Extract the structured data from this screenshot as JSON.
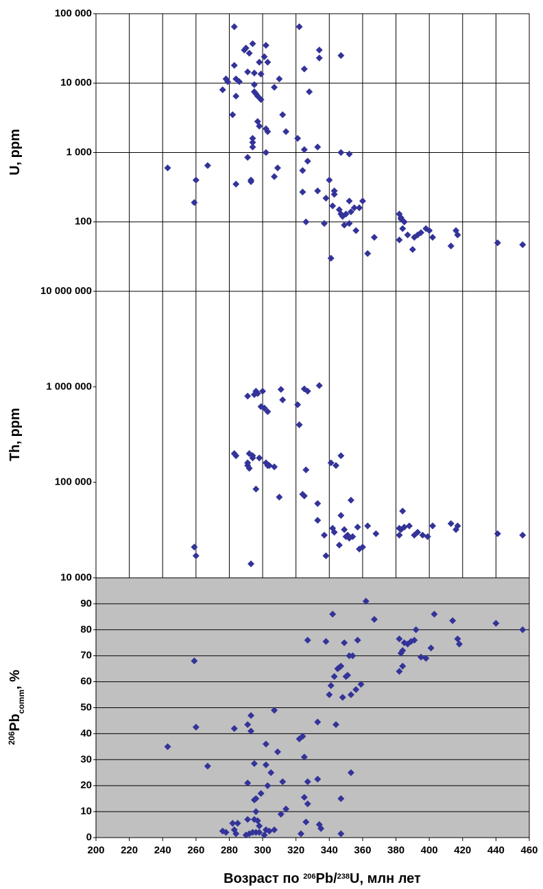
{
  "chart_data": [
    {
      "type": "scatter",
      "log": true,
      "grid": "both",
      "background": "#ffffff",
      "color": "#333399",
      "ylabel": "U, ppm",
      "xlim": [
        200,
        460
      ],
      "ylim": [
        10,
        100000
      ],
      "yticks": [
        100,
        {
          "value": 1000,
          "label": "1 000"
        },
        {
          "value": 10000,
          "label": "10 000"
        },
        {
          "value": 100000,
          "label": "100 000"
        }
      ],
      "x": [
        243,
        259,
        260,
        267,
        276,
        278,
        279,
        282,
        283,
        283,
        284,
        284,
        284,
        286,
        289,
        290,
        291,
        291,
        292,
        293,
        293,
        294,
        294,
        294,
        294,
        295,
        295,
        295,
        296,
        297,
        297,
        298,
        298,
        299,
        299,
        301,
        302,
        302,
        302,
        303,
        303,
        307,
        307,
        309,
        310,
        312,
        314,
        321,
        322,
        324,
        324,
        325,
        325,
        326,
        327,
        328,
        333,
        333,
        334,
        334,
        337,
        338,
        340,
        341,
        342,
        343,
        343,
        346,
        347,
        347,
        347,
        348,
        349,
        350,
        352,
        352,
        352,
        353,
        355,
        356,
        358,
        360,
        363,
        367,
        382,
        382,
        383,
        383,
        384,
        385,
        387,
        390,
        391,
        393,
        395,
        398,
        400,
        402,
        413,
        416,
        417,
        441,
        456
      ],
      "values": [
        600,
        190,
        400,
        650,
        8000,
        11500,
        10500,
        3500,
        65000,
        18000,
        11500,
        6500,
        350,
        10500,
        30000,
        32000,
        14500,
        850,
        27000,
        400,
        380,
        37000,
        1600,
        1400,
        1200,
        7500,
        9500,
        14000,
        7000,
        2800,
        6500,
        2400,
        20000,
        13500,
        5800,
        24000,
        2200,
        1000,
        35000,
        20000,
        2000,
        8700,
        450,
        600,
        11500,
        3500,
        2000,
        1600,
        65000,
        550,
        270,
        1100,
        16000,
        100,
        750,
        7500,
        1200,
        280,
        23000,
        30000,
        95,
        220,
        400,
        30,
        170,
        280,
        250,
        150,
        25000,
        1000,
        130,
        120,
        90,
        130,
        950,
        200,
        95,
        140,
        160,
        75,
        160,
        200,
        35,
        60,
        55,
        130,
        110,
        115,
        80,
        100,
        65,
        40,
        60,
        65,
        70,
        80,
        75,
        60,
        45,
        75,
        65,
        50,
        47
      ]
    },
    {
      "type": "scatter",
      "log": true,
      "grid": "x",
      "background": "#ffffff",
      "color": "#333399",
      "ylabel": "Th, ppm",
      "xlim": [
        200,
        460
      ],
      "ylim": [
        10000,
        10000000
      ],
      "yticks": [
        {
          "value": 10000,
          "label": "10 000"
        },
        {
          "value": 100000,
          "label": "100 000"
        },
        {
          "value": 1000000,
          "label": "1 000 000"
        },
        {
          "value": 10000000,
          "label": "10 000 000"
        }
      ],
      "x": [
        259,
        260,
        283,
        284,
        291,
        291,
        291,
        292,
        292,
        293,
        294,
        294,
        295,
        296,
        296,
        297,
        298,
        299,
        300,
        301,
        302,
        303,
        303,
        304,
        307,
        310,
        311,
        312,
        321,
        322,
        324,
        325,
        325,
        326,
        327,
        333,
        333,
        334,
        337,
        338,
        341,
        342,
        343,
        344,
        346,
        347,
        347,
        349,
        350,
        351,
        352,
        353,
        354,
        357,
        358,
        360,
        363,
        368,
        382,
        382,
        383,
        384,
        385,
        388,
        391,
        393,
        396,
        399,
        402,
        413,
        416,
        417,
        441,
        456
      ],
      "values": [
        21000,
        17000,
        200000,
        190000,
        800000,
        160000,
        150000,
        200000,
        140000,
        14000,
        190000,
        180000,
        830000,
        85000,
        900000,
        850000,
        180000,
        620000,
        900000,
        600000,
        160000,
        550000,
        150000,
        150000,
        145000,
        70000,
        940000,
        730000,
        650000,
        400000,
        75000,
        72000,
        950000,
        135000,
        900000,
        60000,
        40000,
        1030000,
        28000,
        17000,
        160000,
        33000,
        30000,
        150000,
        22000,
        190000,
        45000,
        32000,
        27000,
        28000,
        26000,
        65000,
        27000,
        34000,
        20000,
        21000,
        35000,
        29000,
        28000,
        33000,
        32000,
        50000,
        34000,
        35000,
        28000,
        30000,
        28000,
        27000,
        35000,
        37000,
        32000,
        35000,
        29000,
        28000
      ]
    },
    {
      "type": "scatter",
      "log": false,
      "grid": "y",
      "background": "#c0c0c0",
      "color": "#333399",
      "ylabel": {
        "sup": "206",
        "main": "Pb",
        "sub": "comm",
        "rest": ", %"
      },
      "xlabel": {
        "pre": "Возраст по ",
        "sup1": "206",
        "mid": "Pb/",
        "sup2": "238",
        "post": "U, млн лет"
      },
      "xlim": [
        200,
        460
      ],
      "ylim": [
        0,
        100
      ],
      "xticks": [
        200,
        220,
        240,
        260,
        280,
        300,
        320,
        340,
        360,
        380,
        400,
        420,
        440,
        460
      ],
      "yticks": [
        0,
        10,
        20,
        30,
        40,
        50,
        60,
        70,
        80,
        90
      ],
      "x": [
        243,
        259,
        260,
        267,
        276,
        278,
        282,
        283,
        283,
        284,
        285,
        290,
        291,
        291,
        291,
        292,
        293,
        293,
        294,
        295,
        295,
        295,
        296,
        296,
        296,
        297,
        298,
        298,
        299,
        301,
        302,
        302,
        302,
        303,
        304,
        305,
        307,
        307,
        309,
        311,
        312,
        314,
        322,
        323,
        324,
        325,
        325,
        326,
        327,
        327,
        327,
        333,
        333,
        334,
        335,
        338,
        340,
        341,
        342,
        343,
        344,
        345,
        346,
        347,
        347,
        347,
        348,
        349,
        350,
        351,
        352,
        353,
        353,
        354,
        356,
        357,
        359,
        362,
        367,
        382,
        382,
        383,
        384,
        384,
        385,
        387,
        389,
        391,
        392,
        395,
        398,
        401,
        403,
        414,
        417,
        418,
        440,
        456
      ],
      "values": [
        35,
        68,
        42.5,
        27.5,
        2.5,
        2,
        5.5,
        3,
        42,
        1.5,
        5.5,
        1,
        43.5,
        21,
        7,
        1.5,
        47,
        41,
        2,
        28.5,
        14.5,
        7,
        15,
        10,
        2,
        6.5,
        4.5,
        2,
        17,
        1,
        3,
        36,
        28,
        20,
        2.5,
        25,
        49,
        3,
        33,
        9,
        21.5,
        11,
        38,
        1.5,
        39,
        31,
        15.5,
        6,
        76,
        21.5,
        13,
        22.5,
        44.5,
        5,
        3.5,
        75.5,
        55,
        58.5,
        86,
        62,
        43.5,
        65,
        65.5,
        1.5,
        15,
        66,
        54,
        75,
        62,
        62.5,
        70,
        55,
        25,
        70,
        57,
        76,
        59,
        91,
        84,
        76.5,
        64,
        71,
        72,
        66,
        75,
        74.5,
        75.5,
        76,
        80,
        69.5,
        69,
        73,
        86,
        83.5,
        76.5,
        74.5,
        82.5,
        80
      ]
    }
  ]
}
